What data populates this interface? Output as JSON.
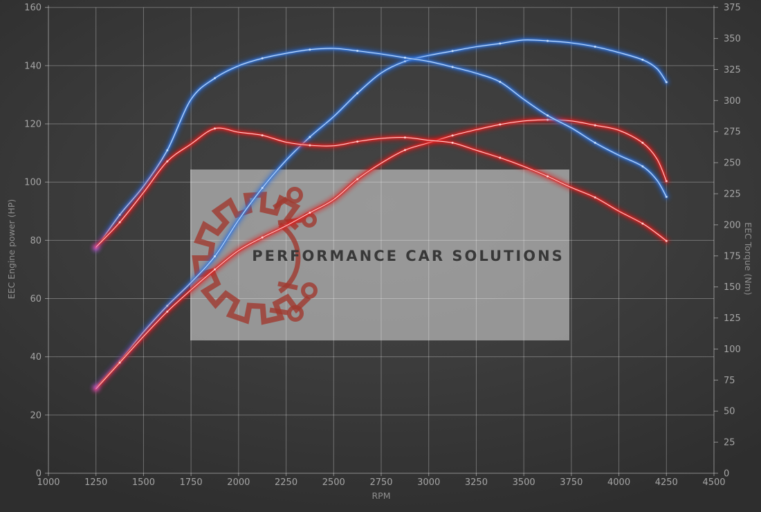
{
  "watermark": {
    "text": "PERFORMANCE CAR SOLUTIONS",
    "box_color": "#d2d2d2",
    "logo_color": "#a03a30",
    "text_color": "#383838"
  },
  "chart_data": {
    "type": "line",
    "title": "",
    "xlabel": "RPM",
    "xlim": [
      1000,
      4500
    ],
    "x_ticks": [
      1000,
      1250,
      1500,
      1750,
      2000,
      2250,
      2500,
      2750,
      3000,
      3250,
      3500,
      3750,
      4000,
      4250,
      4500
    ],
    "left_axis": {
      "label": "EEC Engine power (HP)",
      "min": 0,
      "max": 160,
      "ticks": [
        0,
        20,
        40,
        60,
        80,
        100,
        120,
        140,
        160
      ]
    },
    "right_axis": {
      "label": "EEC Torque (Nm)",
      "min": 0,
      "max": 375,
      "ticks": [
        0,
        25,
        50,
        75,
        100,
        125,
        150,
        175,
        200,
        225,
        250,
        275,
        300,
        325,
        350,
        375
      ]
    },
    "grid": true,
    "legend": false,
    "x": [
      1250,
      1375,
      1500,
      1625,
      1750,
      1875,
      2000,
      2125,
      2250,
      2375,
      2500,
      2625,
      2750,
      2875,
      3000,
      3125,
      3250,
      3375,
      3500,
      3625,
      3750,
      3875,
      4000,
      4125,
      4200,
      4250
    ],
    "series": [
      {
        "name": "power-blue",
        "axis": "left",
        "unit": "HP",
        "color_key": "blue",
        "values": [
          29.5,
          38.5,
          48.5,
          57.5,
          65.5,
          74.5,
          87,
          98,
          107.5,
          115.5,
          122.5,
          130.5,
          137.5,
          141.5,
          143.5,
          145,
          146.5,
          147.6,
          148.8,
          148.5,
          147.8,
          146.5,
          144.5,
          142,
          139,
          134.3
        ]
      },
      {
        "name": "power-red",
        "axis": "left",
        "unit": "HP",
        "color_key": "red",
        "values": [
          29,
          38,
          47,
          55.5,
          63,
          70,
          76.5,
          81,
          85,
          89.5,
          94,
          101,
          106.5,
          111,
          113.5,
          116,
          118,
          119.8,
          121,
          121.4,
          121,
          119.5,
          117.8,
          113.5,
          108,
          100.3
        ]
      },
      {
        "name": "torque-blue",
        "axis": "right",
        "unit": "Nm",
        "color_key": "blue",
        "values": [
          181,
          208,
          231,
          260,
          301,
          318,
          328,
          334,
          338,
          341,
          342,
          340,
          337.5,
          334.5,
          331.5,
          327,
          322,
          315,
          301,
          288,
          278,
          266,
          256,
          247,
          236,
          222.5
        ]
      },
      {
        "name": "torque-red",
        "axis": "right",
        "unit": "Nm",
        "color_key": "red",
        "values": [
          182,
          202,
          226,
          251,
          265,
          277.5,
          274.5,
          272,
          266.5,
          264,
          263.6,
          267,
          269.5,
          270.3,
          268,
          266,
          260,
          254,
          247,
          239,
          230,
          222,
          211,
          201,
          193,
          187
        ]
      }
    ],
    "colors": {
      "blue": {
        "glow": "#1a66e0",
        "main": "#3c7bd9",
        "core": "#cfe4fb"
      },
      "red": {
        "glow": "#e81111",
        "main": "#d92525",
        "core": "#ffd9d9"
      },
      "tip_glow": "#c95fd8",
      "grid": "rgba(255,255,255,0.30)",
      "axis": "rgba(255,255,255,0.45)"
    }
  }
}
